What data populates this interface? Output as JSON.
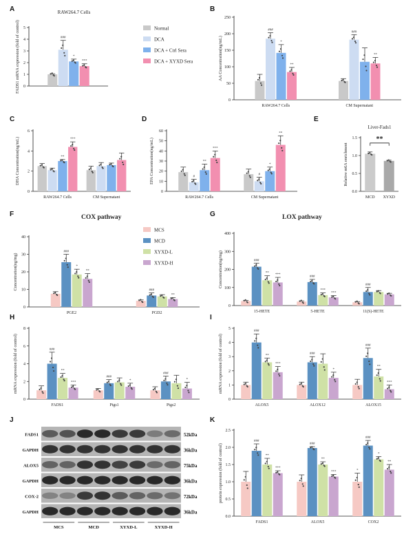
{
  "colors": {
    "normal": "#c9c9c9",
    "dca": "#cddcf2",
    "dca_ctrl": "#7fb1ec",
    "dca_xyxd": "#f28fb0",
    "mcs": "#f6c9c4",
    "mcd": "#5b91c2",
    "xyxd_l": "#cfe1a6",
    "xyxd_h": "#c9a6cf",
    "mcd_single": "#cbcbcb",
    "xyxd_single": "#a9a9a9"
  },
  "legend_top": [
    "Normal",
    "DCA",
    "DCA + Ctrl Sera",
    "DCA + XYXD Sera"
  ],
  "legend_mid": [
    "MCS",
    "MCD",
    "XYXD-L",
    "XYXD-H"
  ],
  "panel_letters": [
    "A",
    "B",
    "C",
    "D",
    "E",
    "F",
    "G",
    "H",
    "I",
    "J",
    "K"
  ],
  "section_titles": {
    "F": "COX pathway",
    "G": "LOX pathway"
  },
  "chart_data": [
    {
      "id": "A",
      "type": "bar",
      "title": "RAW264.7 Cells",
      "ylabel": "FADS1 mRNA expression (fold of control)",
      "ylim": [
        0,
        5
      ],
      "yticks": [
        "0",
        "1",
        "2",
        "3",
        "4",
        "5"
      ],
      "categories": [
        ""
      ],
      "series": [
        {
          "name": "Normal",
          "values": [
            1.0
          ],
          "err": [
            0.05
          ],
          "sig": [
            ""
          ]
        },
        {
          "name": "DCA",
          "values": [
            3.1
          ],
          "err": [
            0.8
          ],
          "sig": [
            "###"
          ]
        },
        {
          "name": "DCA + Ctrl Sera",
          "values": [
            2.1
          ],
          "err": [
            0.2
          ],
          "sig": [
            "*"
          ]
        },
        {
          "name": "DCA + XYXD Sera",
          "values": [
            1.7
          ],
          "err": [
            0.2
          ],
          "sig": [
            "***"
          ]
        }
      ]
    },
    {
      "id": "B",
      "type": "bar",
      "title": "",
      "ylabel": "AA Concentration(ng/mL)",
      "ylim": [
        0,
        250
      ],
      "yticks": [
        "0",
        "50",
        "100",
        "150",
        "200",
        "250"
      ],
      "categories": [
        "RAW264.7 Cells",
        "CM Supernatant"
      ],
      "series": [
        {
          "name": "Normal",
          "values": [
            57,
            57
          ],
          "err": [
            20,
            7
          ],
          "sig": [
            "",
            ""
          ]
        },
        {
          "name": "DCA",
          "values": [
            185,
            182
          ],
          "err": [
            18,
            15
          ],
          "sig": [
            "###",
            "###"
          ]
        },
        {
          "name": "DCA + Ctrl Sera",
          "values": [
            142,
            115
          ],
          "err": [
            25,
            42
          ],
          "sig": [
            "*",
            ""
          ]
        },
        {
          "name": "DCA + XYXD Sera",
          "values": [
            84,
            110
          ],
          "err": [
            14,
            18
          ],
          "sig": [
            "**",
            "**"
          ]
        }
      ]
    },
    {
      "id": "C",
      "type": "bar",
      "title": "",
      "ylabel": "DHA Concentration(ng/mL)",
      "ylim": [
        0,
        6
      ],
      "yticks": [
        "0",
        "2",
        "4",
        "6"
      ],
      "categories": [
        "RAW264.7 Cells",
        "CM Supernatant"
      ],
      "series": [
        {
          "name": "Normal",
          "values": [
            2.5,
            2.1
          ],
          "err": [
            0.25,
            0.4
          ],
          "sig": [
            "",
            ""
          ]
        },
        {
          "name": "DCA",
          "values": [
            2.1,
            2.5
          ],
          "err": [
            0.2,
            0.35
          ],
          "sig": [
            "",
            ""
          ]
        },
        {
          "name": "DCA + Ctrl Sera",
          "values": [
            3.0,
            2.6
          ],
          "err": [
            0.15,
            0.2
          ],
          "sig": [
            "**",
            ""
          ]
        },
        {
          "name": "DCA + XYXD Sera",
          "values": [
            4.4,
            3.1
          ],
          "err": [
            0.5,
            0.7
          ],
          "sig": [
            "***",
            ""
          ]
        }
      ]
    },
    {
      "id": "D",
      "type": "bar",
      "title": "",
      "ylabel": "EPA Concentration(ng/mL)",
      "ylim": [
        0,
        60
      ],
      "yticks": [
        "0",
        "10",
        "20",
        "30",
        "40",
        "50",
        "60"
      ],
      "categories": [
        "RAW264.7 Cells",
        "CM Supernatant"
      ],
      "series": [
        {
          "name": "Normal",
          "values": [
            19,
            17
          ],
          "err": [
            5,
            5
          ],
          "sig": [
            "",
            ""
          ]
        },
        {
          "name": "DCA",
          "values": [
            9,
            10
          ],
          "err": [
            3,
            4
          ],
          "sig": [
            "#",
            "#"
          ]
        },
        {
          "name": "DCA + Ctrl Sera",
          "values": [
            21,
            20
          ],
          "err": [
            6,
            4
          ],
          "sig": [
            "**",
            "*"
          ]
        },
        {
          "name": "DCA + XYXD Sera",
          "values": [
            33,
            46
          ],
          "err": [
            7,
            9
          ],
          "sig": [
            "***",
            "**"
          ]
        }
      ]
    },
    {
      "id": "E",
      "type": "bar",
      "title": "Liver-Fads1",
      "ylabel": "Relative m6A enrichment",
      "ylim": [
        0,
        1.5
      ],
      "yticks": [
        "0.0",
        "0.5",
        "1.0",
        "1.5"
      ],
      "categories": [
        "MCD",
        "XYXD"
      ],
      "values": [
        1.05,
        0.85
      ],
      "err": [
        0.05,
        0.02
      ],
      "bracket": "**"
    },
    {
      "id": "F",
      "type": "bar",
      "title": "",
      "ylabel": "Concentration(ng/mg)",
      "ylim": [
        0,
        40
      ],
      "yticks": [
        "0",
        "10",
        "20",
        "30",
        "40"
      ],
      "categories": [
        "PGE2",
        "PGD2"
      ],
      "series": [
        {
          "name": "MCS",
          "values": [
            7.5,
            3.5
          ],
          "err": [
            1.2,
            0.5
          ],
          "sig": [
            "",
            ""
          ]
        },
        {
          "name": "MCD",
          "values": [
            25.5,
            6.5
          ],
          "err": [
            4.5,
            1.5
          ],
          "sig": [
            "###",
            "###"
          ]
        },
        {
          "name": "XYXD-L",
          "values": [
            18.5,
            6.0
          ],
          "err": [
            3.0,
            1.0
          ],
          "sig": [
            "*",
            ""
          ]
        },
        {
          "name": "XYXD-H",
          "values": [
            16.0,
            4.5
          ],
          "err": [
            3.0,
            0.8
          ],
          "sig": [
            "**",
            "**"
          ]
        }
      ]
    },
    {
      "id": "G",
      "type": "bar",
      "title": "",
      "ylabel": "Concentration(ng/mg)",
      "ylim": [
        0,
        400
      ],
      "yticks": [
        "0",
        "100",
        "200",
        "300",
        "400"
      ],
      "categories": [
        "15-HETE",
        "5-HETE",
        "11(S)-HETE"
      ],
      "series": [
        {
          "name": "MCS",
          "values": [
            25,
            22,
            18
          ],
          "err": [
            4,
            4,
            4
          ],
          "sig": [
            "",
            "",
            ""
          ]
        },
        {
          "name": "MCD",
          "values": [
            215,
            130,
            75
          ],
          "err": [
            20,
            15,
            25
          ],
          "sig": [
            "###",
            "###",
            "###"
          ]
        },
        {
          "name": "XYXD-L",
          "values": [
            140,
            58,
            75
          ],
          "err": [
            25,
            12,
            8
          ],
          "sig": [
            "**",
            "***",
            ""
          ]
        },
        {
          "name": "XYXD-H",
          "values": [
            128,
            45,
            62
          ],
          "err": [
            28,
            10,
            6
          ],
          "sig": [
            "***",
            "***",
            ""
          ]
        }
      ]
    },
    {
      "id": "H",
      "type": "bar",
      "title": "",
      "ylabel": "mRNA expression (fold of control)",
      "ylim": [
        0,
        8
      ],
      "yticks": [
        "0",
        "2",
        "4",
        "6",
        "8"
      ],
      "categories": [
        "FADS1",
        "Ptgs1",
        "Ptgs2"
      ],
      "series": [
        {
          "name": "MCS",
          "values": [
            1.0,
            1.0,
            1.0
          ],
          "err": [
            0.5,
            0.2,
            0.4
          ],
          "sig": [
            "",
            "",
            ""
          ]
        },
        {
          "name": "MCD",
          "values": [
            4.0,
            1.8,
            2.0
          ],
          "err": [
            1.3,
            0.4,
            0.6
          ],
          "sig": [
            "###",
            "###",
            "###"
          ]
        },
        {
          "name": "XYXD-L",
          "values": [
            2.4,
            1.9,
            1.8
          ],
          "err": [
            0.5,
            0.5,
            0.9
          ],
          "sig": [
            "**",
            "",
            ""
          ]
        },
        {
          "name": "XYXD-H",
          "values": [
            1.3,
            1.4,
            1.2
          ],
          "err": [
            0.3,
            0.4,
            0.7
          ],
          "sig": [
            "***",
            "*",
            "*"
          ]
        }
      ]
    },
    {
      "id": "I",
      "type": "bar",
      "title": "",
      "ylabel": "mRNA expression (fold of control)",
      "ylim": [
        0,
        5
      ],
      "yticks": [
        "0",
        "1",
        "2",
        "3",
        "4",
        "5"
      ],
      "categories": [
        "ALOX5",
        "ALOX12",
        "ALOX15"
      ],
      "series": [
        {
          "name": "MCS",
          "values": [
            1.0,
            1.0,
            1.0
          ],
          "err": [
            0.2,
            0.2,
            0.4
          ],
          "sig": [
            "",
            "",
            ""
          ]
        },
        {
          "name": "MCD",
          "values": [
            4.0,
            2.6,
            2.9
          ],
          "err": [
            0.6,
            0.4,
            0.7
          ],
          "sig": [
            "###",
            "###",
            "###"
          ]
        },
        {
          "name": "XYXD-L",
          "values": [
            2.6,
            2.5,
            1.6
          ],
          "err": [
            0.3,
            0.7,
            0.5
          ],
          "sig": [
            "**",
            "",
            "**"
          ]
        },
        {
          "name": "XYXD-H",
          "values": [
            1.9,
            1.5,
            0.7
          ],
          "err": [
            0.4,
            0.4,
            0.3
          ],
          "sig": [
            "***",
            "*",
            "***"
          ]
        }
      ]
    },
    {
      "id": "K",
      "type": "bar",
      "title": "",
      "ylabel": "protein expression (fold of control)",
      "ylim": [
        0,
        2.5
      ],
      "yticks": [
        "0.0",
        "0.5",
        "1.0",
        "1.5",
        "2.0",
        "2.5"
      ],
      "categories": [
        "FADS1",
        "ALOX5",
        "COX2"
      ],
      "series": [
        {
          "name": "MCS",
          "values": [
            1.0,
            1.0,
            1.0
          ],
          "err": [
            0.3,
            0.2,
            0.25
          ],
          "sig": [
            "",
            "",
            "*"
          ]
        },
        {
          "name": "MCD",
          "values": [
            1.9,
            1.98,
            2.05
          ],
          "err": [
            0.2,
            0.04,
            0.15
          ],
          "sig": [
            "###",
            "###",
            "###"
          ]
        },
        {
          "name": "XYXD-L",
          "values": [
            1.5,
            1.5,
            1.65
          ],
          "err": [
            0.18,
            0.08,
            0.08
          ],
          "sig": [
            "**",
            "**",
            "*"
          ]
        },
        {
          "name": "XYXD-H",
          "values": [
            1.25,
            1.15,
            1.35
          ],
          "err": [
            0.07,
            0.06,
            0.15
          ],
          "sig": [
            "***",
            "***",
            "**"
          ]
        }
      ]
    }
  ],
  "western_blot": {
    "rows": [
      "FADS1",
      "GAPDH",
      "ALOX5",
      "GAPDH",
      "COX-2",
      "GAPDH"
    ],
    "kda": [
      "52kDa",
      "36kDa",
      "75kDa",
      "36kDa",
      "72kDa",
      "36kDa"
    ],
    "groups": [
      "MCS",
      "MCD",
      "XYXD-L",
      "XYXD-H"
    ],
    "intensity": [
      [
        0.55,
        0.6,
        0.85,
        0.85,
        0.75,
        0.75,
        0.35,
        0.45
      ],
      [
        0.8,
        0.8,
        0.8,
        0.8,
        0.8,
        0.8,
        0.8,
        0.8
      ],
      [
        0.5,
        0.5,
        0.8,
        0.8,
        0.7,
        0.75,
        0.45,
        0.5
      ],
      [
        0.85,
        0.85,
        0.85,
        0.85,
        0.85,
        0.85,
        0.85,
        0.85
      ],
      [
        0.3,
        0.3,
        0.75,
        0.8,
        0.55,
        0.5,
        0.45,
        0.4
      ],
      [
        0.85,
        0.85,
        0.85,
        0.85,
        0.85,
        0.85,
        0.85,
        0.85
      ]
    ]
  }
}
